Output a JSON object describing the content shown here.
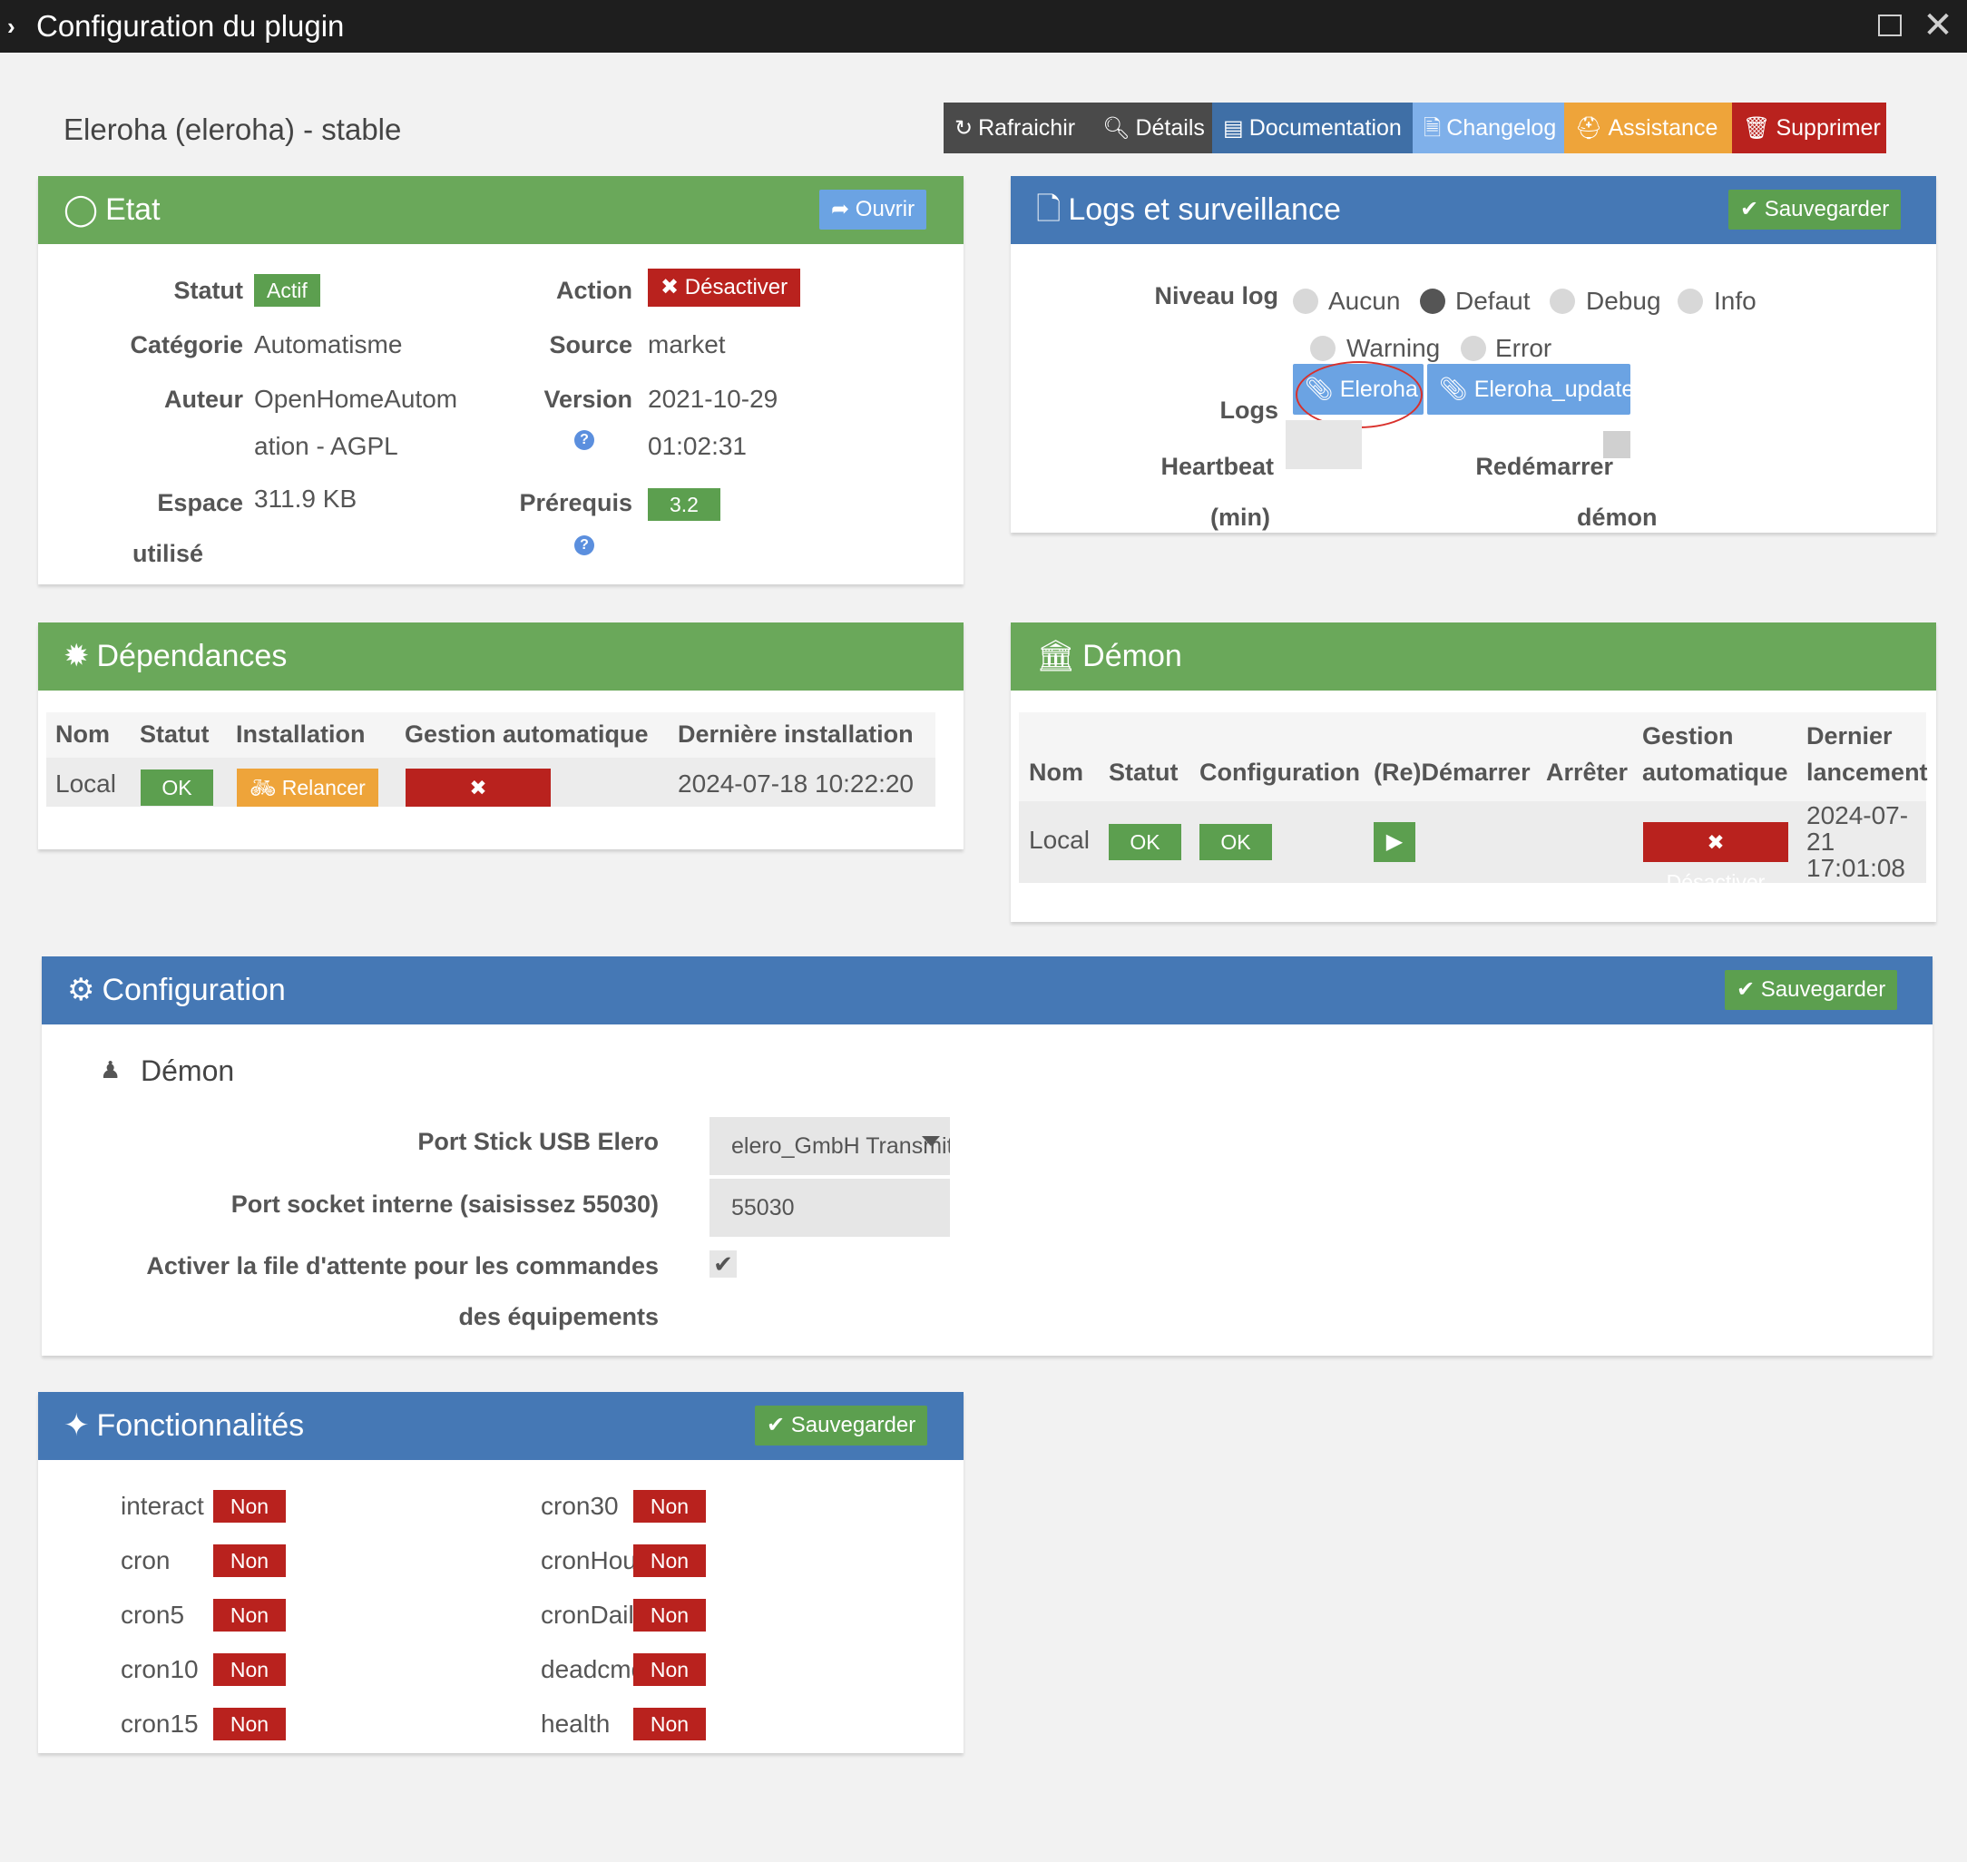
{
  "window": {
    "title": "Configuration du plugin"
  },
  "plugin_title": "Eleroha (eleroha) - stable",
  "toolbar": {
    "refresh": "Rafraichir",
    "details": "Détails",
    "documentation": "Documentation",
    "changelog": "Changelog",
    "assistance": "Assistance",
    "delete": "Supprimer"
  },
  "etat": {
    "title": "Etat",
    "open_btn": "Ouvrir",
    "statut_label": "Statut",
    "statut_value": "Actif",
    "action_label": "Action",
    "action_btn": "Désactiver",
    "categorie_label": "Catégorie",
    "categorie_value": "Automatisme",
    "source_label": "Source",
    "source_value": "market",
    "auteur_label": "Auteur",
    "auteur_line1": "OpenHomeAutom",
    "auteur_line2": "ation - AGPL",
    "version_label": "Version",
    "version_line1": "2021-10-29",
    "version_line2": "01:02:31",
    "espace_label_1": "Espace",
    "espace_label_2": "utilisé",
    "espace_value": "311.9 KB",
    "prerequis_label": "Prérequis",
    "prerequis_value": "3.2"
  },
  "logs": {
    "title": "Logs et surveillance",
    "save_btn": "Sauvegarder",
    "niveau_label": "Niveau log",
    "levels": [
      "Aucun",
      "Defaut",
      "Debug",
      "Info",
      "Warning",
      "Error"
    ],
    "selected_level": "Defaut",
    "logs_label": "Logs",
    "log_files": [
      "Eleroha",
      "Eleroha_update"
    ],
    "heartbeat_label_1": "Heartbeat",
    "heartbeat_label_2": "(min)",
    "restart_label_1": "Redémarrer",
    "restart_label_2": "démon"
  },
  "dependances": {
    "title": "Dépendances",
    "headers": [
      "Nom",
      "Statut",
      "Installation",
      "Gestion automatique",
      "Dernière installation"
    ],
    "row": {
      "nom": "Local",
      "statut": "OK",
      "installation": "Relancer",
      "gestion": "Désactiver",
      "derniere": "2024-07-18 10:22:20"
    }
  },
  "demon": {
    "title": "Démon",
    "headers": {
      "nom": "Nom",
      "statut": "Statut",
      "configuration": "Configuration",
      "redemarrer": "(Re)Démarrer",
      "arreter": "Arrêter",
      "gestion_1": "Gestion",
      "gestion_2": "automatique",
      "dernier_1": "Dernier",
      "dernier_2": "lancement"
    },
    "row": {
      "nom": "Local",
      "statut": "OK",
      "configuration": "OK",
      "gestion": "Désactiver",
      "date_1": "2024-07-",
      "date_2": "21",
      "date_3": "17:01:08"
    }
  },
  "configuration": {
    "title": "Configuration",
    "save_btn": "Sauvegarder",
    "section": "Démon",
    "port_usb_label": "Port Stick USB Elero",
    "port_usb_value": "elero_GmbH Transmitter",
    "port_socket_label": "Port socket interne (saisissez 55030)",
    "port_socket_value": "55030",
    "queue_label_1": "Activer la file d'attente pour les commandes",
    "queue_label_2": "des équipements",
    "queue_checked": true
  },
  "fonctionnalites": {
    "title": "Fonctionnalités",
    "save_btn": "Sauvegarder",
    "left": [
      {
        "name": "interact",
        "value": "Non"
      },
      {
        "name": "cron",
        "value": "Non"
      },
      {
        "name": "cron5",
        "value": "Non"
      },
      {
        "name": "cron10",
        "value": "Non"
      },
      {
        "name": "cron15",
        "value": "Non"
      }
    ],
    "right": [
      {
        "name": "cron30",
        "value": "Non"
      },
      {
        "name": "cronHourly",
        "value": "Non"
      },
      {
        "name": "cronDaily",
        "value": "Non"
      },
      {
        "name": "deadcmd",
        "value": "Non"
      },
      {
        "name": "health",
        "value": "Non"
      }
    ]
  }
}
